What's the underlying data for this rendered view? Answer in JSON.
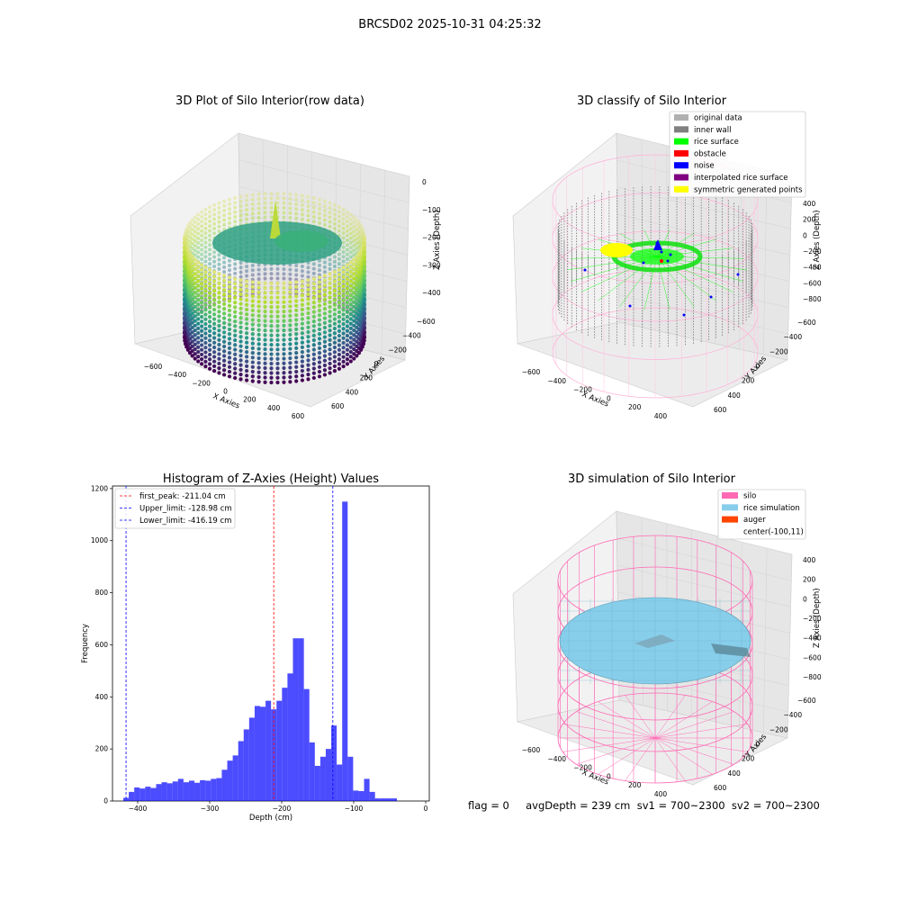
{
  "suptitle": "BRCSD02 2025-10-31 04:25:32",
  "panels": {
    "raw": {
      "title": "3D Plot of Silo Interior(row data)",
      "xlabel": "X Axies",
      "ylabel": "Y Axies",
      "zlabel": "Z Axies (Depth)",
      "xticks": [
        "−600",
        "−400",
        "−200",
        "0",
        "200",
        "400",
        "600"
      ],
      "yticks": [
        "−600",
        "−400",
        "−200",
        "0",
        "200",
        "400",
        "600"
      ],
      "zticks": [
        "0",
        "−100",
        "−200",
        "−300",
        "−400"
      ]
    },
    "classify": {
      "title": "3D classify of Silo Interior",
      "xlabel": "X Axies",
      "ylabel": "Y Axies",
      "zlabel": "Z Axies (Depth)",
      "xticks": [
        "−600",
        "−400",
        "−200",
        "0",
        "200",
        "400"
      ],
      "yticks": [
        "−600",
        "−400",
        "−200",
        "0",
        "200",
        "400",
        "600"
      ],
      "zticks": [
        "400",
        "200",
        "0",
        "−200",
        "−400",
        "−600",
        "−800"
      ],
      "legend": [
        {
          "label": "original data",
          "color": "#b0b0b0"
        },
        {
          "label": "inner wall",
          "color": "#808080"
        },
        {
          "label": "rice surface",
          "color": "#00ff00"
        },
        {
          "label": "obstacle",
          "color": "#ff0000"
        },
        {
          "label": "noise",
          "color": "#0000ff"
        },
        {
          "label": "interpolated rice surface",
          "color": "#800080"
        },
        {
          "label": "symmetric generated points",
          "color": "#ffff00"
        }
      ]
    },
    "simulation": {
      "title": "3D simulation of Silo Interior",
      "xlabel": "X Axies",
      "ylabel": "Y Axies",
      "zlabel": "Z Axies (Depth)",
      "xticks": [
        "−600",
        "−400",
        "−200",
        "0",
        "200",
        "400"
      ],
      "yticks": [
        "−600",
        "−400",
        "−200",
        "0",
        "200",
        "400",
        "600"
      ],
      "zticks": [
        "400",
        "200",
        "0",
        "−200",
        "−400",
        "−600",
        "−800"
      ],
      "legend": [
        {
          "label": "silo",
          "color": "#ff69b4"
        },
        {
          "label": "rice simulation",
          "color": "#87ceeb"
        },
        {
          "label": "auger",
          "color": "#ff4500"
        },
        {
          "label": "center(-100,11)",
          "color": "#ffffff"
        }
      ]
    }
  },
  "chart_data": {
    "type": "bar",
    "title": "Histogram of Z-Axies (Height) Values",
    "xlabel": "Depth (cm)",
    "ylabel": "Frequency",
    "xlim": [
      -435,
      5
    ],
    "ylim": [
      0,
      1210
    ],
    "xticks": [
      -400,
      -300,
      -200,
      -100,
      0
    ],
    "xtick_labels": [
      "−400",
      "−300",
      "−200",
      "−100",
      "0"
    ],
    "yticks": [
      0,
      200,
      400,
      600,
      800,
      1000,
      1200
    ],
    "bar_color": "#0000ff",
    "bin_start": -420,
    "bin_width": 7.6,
    "values": [
      12,
      35,
      52,
      48,
      55,
      50,
      65,
      72,
      68,
      75,
      85,
      72,
      78,
      70,
      80,
      78,
      85,
      88,
      120,
      155,
      175,
      230,
      275,
      320,
      365,
      362,
      385,
      352,
      385,
      435,
      490,
      625,
      625,
      430,
      225,
      135,
      170,
      200,
      290,
      140,
      1150,
      170,
      40,
      38,
      85,
      35,
      10,
      10,
      10,
      10
    ],
    "lines": [
      {
        "label": "first_peak: -211.04 cm",
        "x": -211.04,
        "color": "#ff0000"
      },
      {
        "label": "Upper_limit: -128.98 cm",
        "x": -128.98,
        "color": "#0000ff"
      },
      {
        "label": "Lower_limit: -416.19 cm",
        "x": -416.19,
        "color": "#0000ff"
      }
    ]
  },
  "footer": {
    "text": "flag = 0     avgDepth = 239 cm  sv1 = 700~2300  sv2 = 700~2300"
  }
}
